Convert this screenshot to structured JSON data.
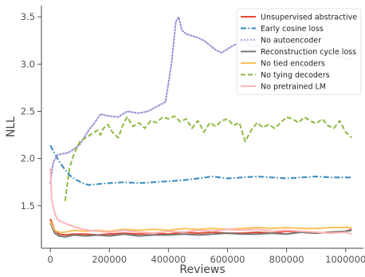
{
  "chart_data": {
    "type": "line",
    "xlabel": "Reviews",
    "ylabel": "NLL",
    "xlim": [
      -30000,
      1060000
    ],
    "ylim": [
      1.05,
      3.62
    ],
    "xticks": [
      0,
      200000,
      400000,
      600000,
      800000,
      1000000
    ],
    "xtick_labels": [
      "0",
      "200000",
      "400000",
      "600000",
      "800000",
      "1000000"
    ],
    "yticks": [
      1.5,
      2.0,
      2.5,
      3.0,
      3.5
    ],
    "ytick_labels": [
      "1.5",
      "2.0",
      "2.5",
      "3.0",
      "3.5"
    ],
    "grid": false,
    "legend_position": "top-right",
    "series": [
      {
        "name": "Unsupervised abstractive",
        "color": "#e24a33",
        "style": "solid",
        "x": [
          0,
          15000,
          30000,
          50000,
          80000,
          120000,
          160000,
          200000,
          250000,
          300000,
          350000,
          400000,
          450000,
          500000,
          550000,
          600000,
          650000,
          700000,
          750000,
          800000,
          850000,
          900000,
          950000,
          1000000,
          1020000
        ],
        "y": [
          1.36,
          1.24,
          1.2,
          1.19,
          1.2,
          1.2,
          1.19,
          1.2,
          1.21,
          1.2,
          1.21,
          1.2,
          1.22,
          1.21,
          1.22,
          1.21,
          1.21,
          1.22,
          1.21,
          1.23,
          1.22,
          1.21,
          1.22,
          1.23,
          1.25
        ]
      },
      {
        "name": "Early cosine loss",
        "color": "#348abd",
        "style": "dashdot",
        "x": [
          0,
          15000,
          30000,
          50000,
          70000,
          90000,
          110000,
          130000,
          160000,
          200000,
          250000,
          300000,
          350000,
          400000,
          450000,
          500000,
          550000,
          600000,
          650000,
          700000,
          750000,
          800000,
          850000,
          900000,
          950000,
          1000000,
          1020000
        ],
        "y": [
          2.14,
          2.05,
          1.97,
          1.88,
          1.81,
          1.77,
          1.74,
          1.72,
          1.73,
          1.74,
          1.75,
          1.74,
          1.75,
          1.76,
          1.77,
          1.79,
          1.81,
          1.79,
          1.8,
          1.81,
          1.8,
          1.79,
          1.8,
          1.81,
          1.8,
          1.8,
          1.8
        ]
      },
      {
        "name": "No autoencoder",
        "color": "#988ed5",
        "style": "dotted",
        "x": [
          0,
          10000,
          25000,
          40000,
          60000,
          80000,
          100000,
          130000,
          150000,
          170000,
          200000,
          230000,
          260000,
          300000,
          330000,
          360000,
          390000,
          410000,
          425000,
          435000,
          445000,
          460000,
          480000,
          500000,
          520000,
          540000,
          560000,
          580000,
          600000,
          620000,
          640000,
          660000,
          680000,
          700000,
          750000,
          800000,
          850000,
          900000,
          950000,
          1000000,
          1020000
        ],
        "y": [
          1.74,
          1.96,
          2.04,
          2.05,
          2.06,
          2.1,
          2.15,
          2.3,
          2.38,
          2.47,
          2.45,
          2.44,
          2.5,
          2.48,
          2.5,
          2.55,
          2.6,
          3.0,
          3.45,
          3.5,
          3.36,
          3.32,
          3.3,
          3.28,
          3.25,
          3.2,
          3.15,
          3.12,
          3.16,
          3.2,
          3.22,
          3.25,
          3.18,
          3.2,
          3.15,
          3.18,
          3.08,
          3.15,
          3.1,
          3.06,
          3.05
        ]
      },
      {
        "name": "Reconstruction cycle loss",
        "color": "#777777",
        "style": "solid",
        "x": [
          0,
          15000,
          30000,
          50000,
          80000,
          120000,
          160000,
          200000,
          250000,
          300000,
          350000,
          400000,
          450000,
          500000,
          550000,
          600000,
          650000,
          700000,
          750000,
          800000,
          850000,
          900000,
          950000,
          1000000,
          1020000
        ],
        "y": [
          1.32,
          1.21,
          1.18,
          1.17,
          1.19,
          1.18,
          1.19,
          1.18,
          1.2,
          1.18,
          1.19,
          1.19,
          1.2,
          1.19,
          1.2,
          1.21,
          1.2,
          1.2,
          1.21,
          1.2,
          1.22,
          1.21,
          1.22,
          1.23,
          1.24
        ]
      },
      {
        "name": "No tied encoders",
        "color": "#fbc15e",
        "style": "solid",
        "x": [
          0,
          15000,
          30000,
          50000,
          80000,
          120000,
          160000,
          200000,
          250000,
          300000,
          350000,
          400000,
          450000,
          500000,
          550000,
          600000,
          650000,
          700000,
          750000,
          800000,
          850000,
          900000,
          950000,
          1000000,
          1020000
        ],
        "y": [
          1.33,
          1.24,
          1.22,
          1.22,
          1.24,
          1.23,
          1.24,
          1.23,
          1.25,
          1.24,
          1.25,
          1.24,
          1.26,
          1.25,
          1.26,
          1.25,
          1.26,
          1.27,
          1.26,
          1.27,
          1.26,
          1.26,
          1.27,
          1.27,
          1.27
        ]
      },
      {
        "name": "No tying decoders",
        "color": "#8eba42",
        "style": "dashed",
        "x": [
          50000,
          65000,
          80000,
          100000,
          120000,
          140000,
          160000,
          170000,
          180000,
          195000,
          210000,
          230000,
          245000,
          260000,
          280000,
          300000,
          320000,
          340000,
          360000,
          380000,
          400000,
          420000,
          440000,
          460000,
          480000,
          500000,
          520000,
          540000,
          560000,
          580000,
          600000,
          620000,
          640000,
          660000,
          680000,
          700000,
          720000,
          740000,
          760000,
          780000,
          800000,
          820000,
          840000,
          860000,
          880000,
          900000,
          920000,
          940000,
          960000,
          980000,
          1000000,
          1020000
        ],
        "y": [
          1.55,
          1.9,
          2.05,
          2.18,
          2.22,
          2.26,
          2.3,
          2.25,
          2.32,
          2.36,
          2.28,
          2.22,
          2.35,
          2.44,
          2.34,
          2.38,
          2.32,
          2.4,
          2.38,
          2.44,
          2.42,
          2.45,
          2.39,
          2.42,
          2.32,
          2.4,
          2.28,
          2.38,
          2.34,
          2.4,
          2.42,
          2.35,
          2.38,
          2.18,
          2.3,
          2.38,
          2.33,
          2.36,
          2.32,
          2.38,
          2.44,
          2.42,
          2.38,
          2.44,
          2.4,
          2.37,
          2.42,
          2.35,
          2.32,
          2.4,
          2.28,
          2.22
        ]
      },
      {
        "name": "No pretrained LM",
        "color": "#ffb5b8",
        "style": "solid",
        "x": [
          0,
          5000,
          15000,
          25000,
          40000,
          60000,
          80000,
          100000,
          130000,
          160000,
          200000,
          250000,
          300000,
          350000,
          400000,
          450000,
          500000,
          550000,
          600000,
          650000,
          700000,
          750000,
          800000,
          850000,
          900000,
          950000,
          1000000,
          1020000
        ],
        "y": [
          1.9,
          1.55,
          1.42,
          1.35,
          1.33,
          1.3,
          1.28,
          1.26,
          1.24,
          1.23,
          1.22,
          1.24,
          1.22,
          1.21,
          1.23,
          1.22,
          1.24,
          1.23,
          1.25,
          1.24,
          1.25,
          1.23,
          1.24,
          1.23,
          1.22,
          1.21,
          1.22,
          1.2
        ]
      }
    ]
  }
}
